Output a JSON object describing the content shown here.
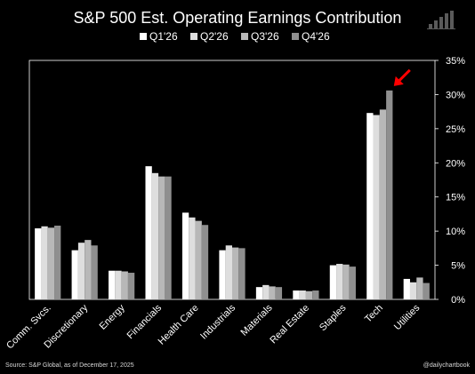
{
  "colors": {
    "background": "#000000",
    "text": "#ffffff",
    "series": [
      "#ffffff",
      "#dedede",
      "#b8b8b8",
      "#8f8f8f"
    ],
    "annotation_arrow": "#ff0000"
  },
  "footer": {
    "source": "Source: S&P Global, as of December 17, 2025",
    "handle": "@dailychartbook"
  },
  "logo": {
    "icon": "bar-chart-logo-icon"
  },
  "chart_data": {
    "type": "bar",
    "title": "S&P 500 Est. Operating Earnings Contribution",
    "xlabel": "",
    "ylabel": "",
    "ylim": [
      0,
      35
    ],
    "yticks": [
      0,
      5,
      10,
      15,
      20,
      25,
      30,
      35
    ],
    "ytick_labels": [
      "0%",
      "5%",
      "10%",
      "15%",
      "20%",
      "25%",
      "30%",
      "35%"
    ],
    "grid": false,
    "legend_position": "top-center",
    "annotation": "red arrow pointing to Tech Q4'26 bar",
    "categories": [
      "Comm. Svcs.",
      "Discretionary",
      "Energy",
      "Financials",
      "Health Care",
      "Industrials",
      "Materials",
      "Real Estate",
      "Staples",
      "Tech",
      "Utilities"
    ],
    "series": [
      {
        "name": "Q1'26",
        "values": [
          10.4,
          7.2,
          4.2,
          19.5,
          12.7,
          7.2,
          1.8,
          1.3,
          5.0,
          27.3,
          3.0
        ]
      },
      {
        "name": "Q2'26",
        "values": [
          10.7,
          8.3,
          4.2,
          18.5,
          12.0,
          7.9,
          2.1,
          1.3,
          5.2,
          27.0,
          2.5
        ]
      },
      {
        "name": "Q3'26",
        "values": [
          10.5,
          8.7,
          4.1,
          18.0,
          11.5,
          7.6,
          1.9,
          1.2,
          5.1,
          27.8,
          3.2
        ]
      },
      {
        "name": "Q4'26",
        "values": [
          10.8,
          7.9,
          3.9,
          18.0,
          10.9,
          7.5,
          1.8,
          1.3,
          4.8,
          30.6,
          2.4
        ]
      }
    ]
  }
}
